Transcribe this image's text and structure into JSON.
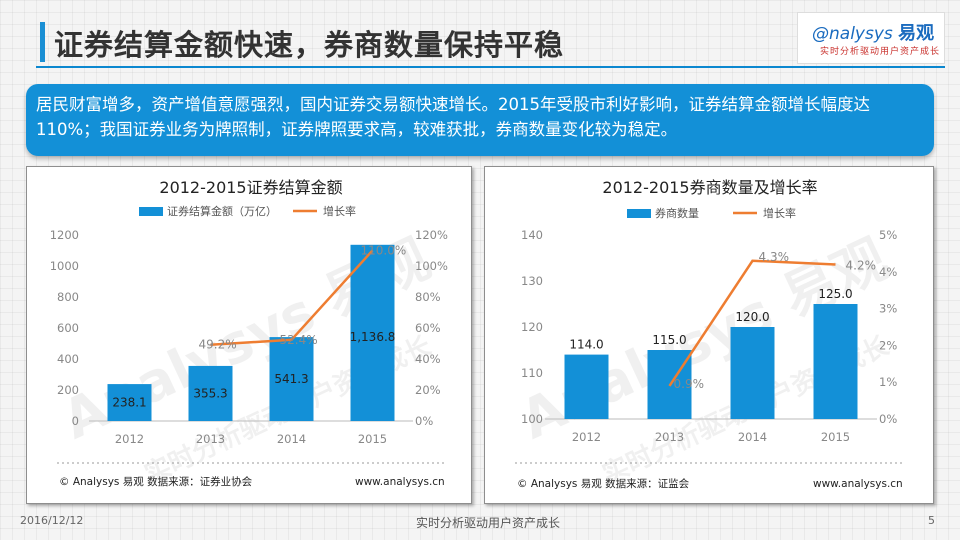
{
  "page": {
    "title": "证券结算金额快速，券商数量保持平稳",
    "summary": "居民财富增多，资产增值意愿强烈，国内证券交易额快速增长。2015年受股市利好影响，证券结算金额增长幅度达110%；我国证券业务为牌照制，证券牌照要求高，较难获批，券商数量变化较为稳定。",
    "logo": {
      "brand": "nalysys",
      "brand_mark": "易观",
      "tagline": "实时分析驱动用户资产成长"
    },
    "footer": {
      "date": "2016/12/12",
      "center": "实时分析驱动用户资产成长",
      "page_number": "5"
    },
    "watermark": {
      "brand": "Analysys 易观",
      "tagline": "实时分析驱动用户资产成长"
    }
  },
  "colors": {
    "bar": "#1390d7",
    "line": "#ee7d31",
    "accent": "#0b87cf"
  },
  "chart_data": [
    {
      "type": "bar",
      "title": "2012-2015证券结算金额",
      "categories": [
        "2012",
        "2013",
        "2014",
        "2015"
      ],
      "series": [
        {
          "name": "证券结算金额（万亿）",
          "type": "bar",
          "axis": "left",
          "values": [
            238.1,
            355.3,
            541.3,
            1136.8
          ],
          "labels": [
            "238.1",
            "355.3",
            "541.3",
            "1,136.8"
          ]
        },
        {
          "name": "增长率",
          "type": "line",
          "axis": "right",
          "values": [
            null,
            49.2,
            52.4,
            110.0
          ],
          "labels": [
            "",
            "49.2%",
            "52.4%",
            "110.0%"
          ]
        }
      ],
      "y_left": {
        "min": 0,
        "max": 1200,
        "ticks": [
          "0",
          "200",
          "400",
          "600",
          "800",
          "1000",
          "1200"
        ]
      },
      "y_right": {
        "min": 0,
        "max": 120,
        "ticks": [
          "0%",
          "20%",
          "40%",
          "60%",
          "80%",
          "100%",
          "120%"
        ]
      },
      "note_left": "© Analysys 易观    数据来源：证券业协会",
      "note_right": "www.analysys.cn"
    },
    {
      "type": "bar",
      "title": "2012-2015券商数量及增长率",
      "categories": [
        "2012",
        "2013",
        "2014",
        "2015"
      ],
      "series": [
        {
          "name": "券商数量",
          "type": "bar",
          "axis": "left",
          "values": [
            114.0,
            115.0,
            120.0,
            125.0
          ],
          "labels": [
            "114.0",
            "115.0",
            "120.0",
            "125.0"
          ]
        },
        {
          "name": "增长率",
          "type": "line",
          "axis": "right",
          "values": [
            null,
            0.9,
            4.3,
            4.2
          ],
          "labels": [
            "",
            "0.9%",
            "4.3%",
            "4.2%"
          ]
        }
      ],
      "y_left": {
        "min": 100,
        "max": 140,
        "ticks": [
          "100",
          "110",
          "120",
          "130",
          "140"
        ]
      },
      "y_right": {
        "min": 0,
        "max": 5,
        "ticks": [
          "0%",
          "1%",
          "2%",
          "3%",
          "4%",
          "5%"
        ]
      },
      "note_left": "© Analysys 易观    数据来源：证监会",
      "note_right": "www.analysys.cn"
    }
  ]
}
